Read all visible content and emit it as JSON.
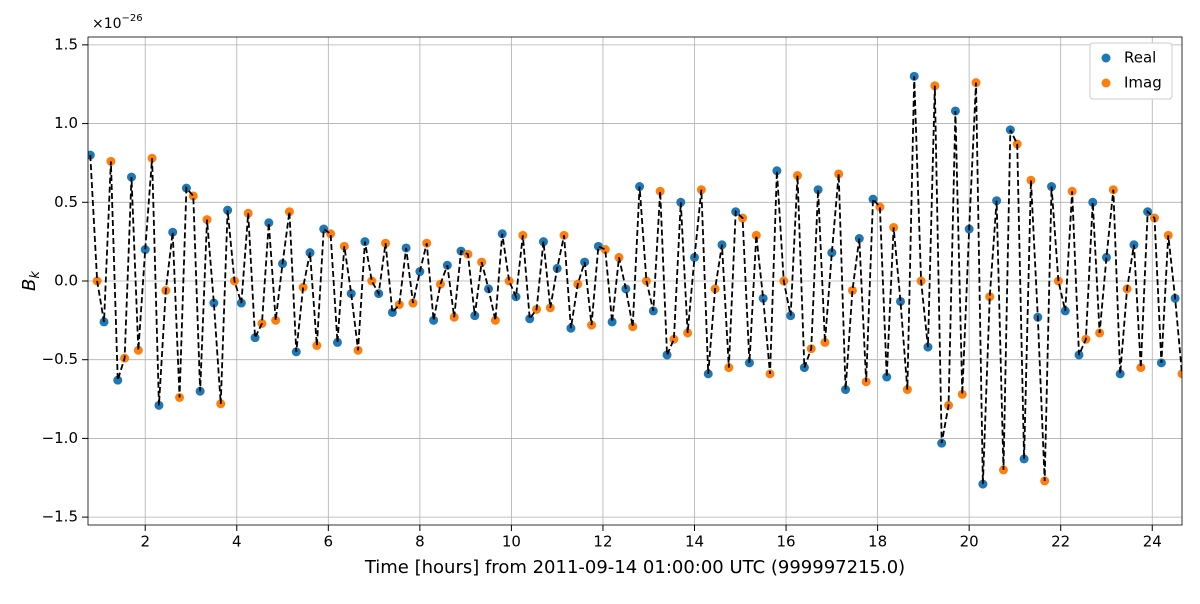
{
  "chart_data": {
    "type": "scatter",
    "x_label": "Time [hours] from 2011-09-14 01:00:00 UTC (999997215.0)",
    "y_label": "B",
    "y_label_subscript": "k",
    "offset_text": "×10",
    "offset_exponent": "−26",
    "xlim": [
      0.75,
      24.65
    ],
    "xticks": [
      2,
      4,
      6,
      8,
      10,
      12,
      14,
      16,
      18,
      20,
      22,
      24
    ],
    "ylim": [
      -1.55,
      1.55
    ],
    "yticks": [
      {
        "value": -1.5,
        "label": "−1.5"
      },
      {
        "value": -1.0,
        "label": "−1.0"
      },
      {
        "value": -0.5,
        "label": "−0.5"
      },
      {
        "value": 0.0,
        "label": "0.0"
      },
      0.5,
      {
        "value": 1.0,
        "label": "1.0"
      },
      1.5
    ],
    "grid": true,
    "legend": "upper right",
    "line_color": "#000000",
    "series": [
      {
        "name": "Real",
        "color": "#1f77b4",
        "x": [
          0.8,
          1.1,
          1.4,
          1.7,
          2.0,
          2.3,
          2.6,
          2.9,
          3.2,
          3.5,
          3.8,
          4.1,
          4.4,
          4.7,
          5.0,
          5.3,
          5.6,
          5.9,
          6.2,
          6.5,
          6.8,
          7.1,
          7.4,
          7.7,
          8.0,
          8.3,
          8.6,
          8.9,
          9.2,
          9.5,
          9.8,
          10.1,
          10.4,
          10.7,
          11.0,
          11.3,
          11.6,
          11.9,
          12.2,
          12.5,
          12.8,
          13.1,
          13.4,
          13.7,
          14.0,
          14.3,
          14.6,
          14.9,
          15.2,
          15.5,
          15.8,
          16.1,
          16.4,
          16.7,
          17.0,
          17.3,
          17.6,
          17.9,
          18.2,
          18.5,
          18.8,
          19.1,
          19.4,
          19.7,
          20.0,
          20.3,
          20.6,
          20.9,
          21.2,
          21.5,
          21.8,
          22.1,
          22.4,
          22.7,
          23.0,
          23.3,
          23.6,
          23.9,
          24.2,
          24.5
        ],
        "values": [
          0.8,
          -0.26,
          -0.63,
          0.66,
          0.2,
          -0.79,
          0.31,
          0.59,
          -0.7,
          -0.14,
          0.45,
          -0.14,
          -0.36,
          0.37,
          0.11,
          -0.45,
          0.18,
          0.33,
          -0.39,
          -0.08,
          0.25,
          -0.08,
          -0.2,
          0.21,
          0.06,
          -0.25,
          0.1,
          0.19,
          -0.22,
          -0.05,
          0.3,
          -0.1,
          -0.24,
          0.25,
          0.08,
          -0.3,
          0.12,
          0.22,
          -0.26,
          -0.05,
          0.6,
          -0.19,
          -0.47,
          0.5,
          0.15,
          -0.59,
          0.23,
          0.44,
          -0.52,
          -0.11,
          0.7,
          -0.22,
          -0.55,
          0.58,
          0.18,
          -0.69,
          0.27,
          0.52,
          -0.61,
          -0.13,
          1.3,
          -0.42,
          -1.03,
          1.08,
          0.33,
          -1.29,
          0.51,
          0.96,
          -1.13,
          -0.23,
          0.6,
          -0.19,
          -0.47,
          0.5,
          0.15,
          -0.59,
          0.23,
          0.44,
          -0.52,
          -0.11
        ]
      },
      {
        "name": "Imag",
        "color": "#ff7f0e",
        "x": [
          0.95,
          1.25,
          1.55,
          1.85,
          2.15,
          2.45,
          2.75,
          3.05,
          3.35,
          3.65,
          3.95,
          4.25,
          4.55,
          4.85,
          5.15,
          5.45,
          5.75,
          6.05,
          6.35,
          6.65,
          6.95,
          7.25,
          7.55,
          7.85,
          8.15,
          8.45,
          8.75,
          9.05,
          9.35,
          9.65,
          9.95,
          10.25,
          10.55,
          10.85,
          11.15,
          11.45,
          11.75,
          12.05,
          12.35,
          12.65,
          12.95,
          13.25,
          13.55,
          13.85,
          14.15,
          14.45,
          14.75,
          15.05,
          15.35,
          15.65,
          15.95,
          16.25,
          16.55,
          16.85,
          17.15,
          17.45,
          17.75,
          18.05,
          18.35,
          18.65,
          18.95,
          19.25,
          19.55,
          19.85,
          20.15,
          20.45,
          20.75,
          21.05,
          21.35,
          21.65,
          21.95,
          22.25,
          22.55,
          22.85,
          23.15,
          23.45,
          23.75,
          24.05,
          24.35,
          24.65
        ],
        "values": [
          0,
          0.76,
          -0.49,
          -0.44,
          0.78,
          -0.06,
          -0.74,
          0.54,
          0.39,
          -0.78,
          0,
          0.43,
          -0.27,
          -0.25,
          0.44,
          -0.04,
          -0.41,
          0.3,
          0.22,
          -0.44,
          0,
          0.24,
          -0.15,
          -0.14,
          0.24,
          -0.02,
          -0.23,
          0.17,
          0.12,
          -0.25,
          0,
          0.29,
          -0.18,
          -0.17,
          0.29,
          -0.02,
          -0.28,
          0.2,
          0.15,
          -0.29,
          0,
          0.57,
          -0.37,
          -0.33,
          0.58,
          -0.05,
          -0.55,
          0.4,
          0.29,
          -0.59,
          0,
          0.67,
          -0.43,
          -0.39,
          0.68,
          -0.06,
          -0.64,
          0.47,
          0.34,
          -0.69,
          0,
          1.24,
          -0.79,
          -0.72,
          1.26,
          -0.1,
          -1.2,
          0.87,
          0.64,
          -1.27,
          0,
          0.57,
          -0.37,
          -0.33,
          0.58,
          -0.05,
          -0.55,
          0.4,
          0.29,
          -0.59
        ]
      }
    ]
  }
}
